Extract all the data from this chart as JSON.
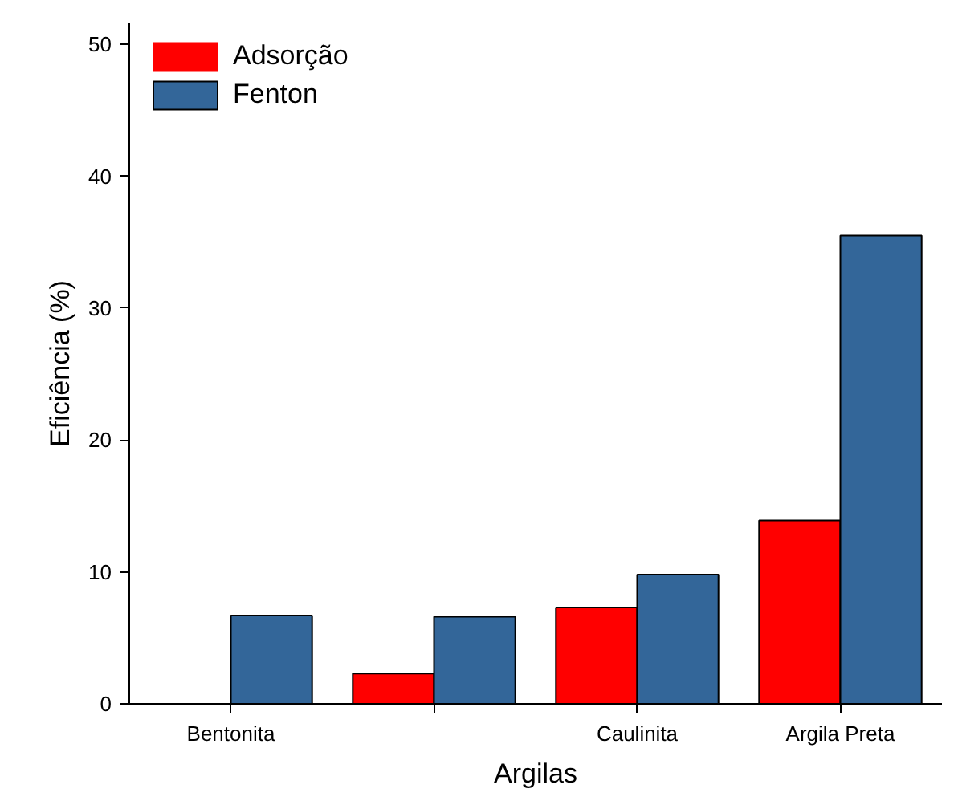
{
  "chart_data": {
    "type": "bar",
    "xlabel": "Argilas",
    "ylabel": "Eficiência (%)",
    "categories": [
      "Bentonita",
      null,
      "Caulinita",
      "Argila Preta"
    ],
    "series": [
      {
        "name": "Adsorção",
        "color": "#ff0000",
        "values": [
          0,
          2.3,
          7.3,
          13.9
        ]
      },
      {
        "name": "Fenton",
        "color": "#336699",
        "values": [
          6.7,
          6.6,
          9.8,
          35.5
        ]
      }
    ],
    "ylim": [
      0,
      51.6
    ],
    "yticks": [
      0,
      10,
      20,
      30,
      40,
      50
    ],
    "grid": false,
    "legend": "top left"
  }
}
